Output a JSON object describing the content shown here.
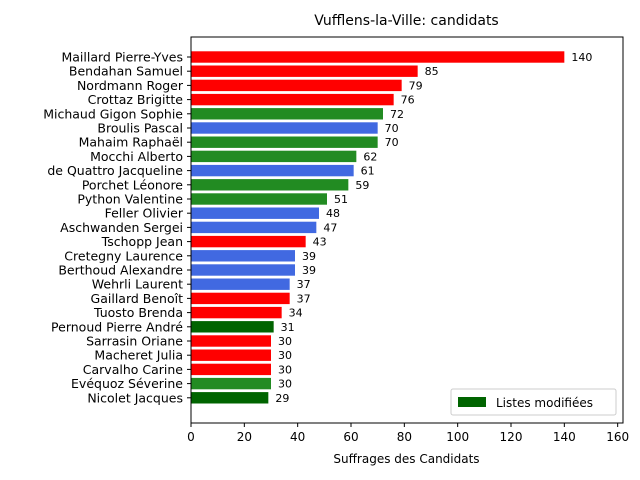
{
  "chart_data": {
    "type": "bar",
    "orientation": "horizontal",
    "title": "Vufflens-la-Ville: candidats",
    "xlabel": "Suffrages des Candidats",
    "ylabel": "",
    "xlim": [
      0,
      162
    ],
    "xticks": [
      0,
      20,
      40,
      60,
      80,
      100,
      120,
      140,
      160
    ],
    "grid": false,
    "legend": {
      "placement": "lower-right",
      "entries": [
        {
          "label": "Listes modifiées",
          "color": "#006400"
        }
      ]
    },
    "candidates": [
      {
        "name": "Maillard Pierre-Yves",
        "value": 140,
        "color": "#ff0000"
      },
      {
        "name": "Bendahan Samuel",
        "value": 85,
        "color": "#ff0000"
      },
      {
        "name": "Nordmann Roger",
        "value": 79,
        "color": "#ff0000"
      },
      {
        "name": "Crottaz Brigitte",
        "value": 76,
        "color": "#ff0000"
      },
      {
        "name": "Michaud Gigon Sophie",
        "value": 72,
        "color": "#228b22"
      },
      {
        "name": "Broulis Pascal",
        "value": 70,
        "color": "#4169e1"
      },
      {
        "name": "Mahaim Raphaël",
        "value": 70,
        "color": "#228b22"
      },
      {
        "name": "Mocchi Alberto",
        "value": 62,
        "color": "#228b22"
      },
      {
        "name": "de Quattro Jacqueline",
        "value": 61,
        "color": "#4169e1"
      },
      {
        "name": "Porchet Léonore",
        "value": 59,
        "color": "#228b22"
      },
      {
        "name": "Python Valentine",
        "value": 51,
        "color": "#228b22"
      },
      {
        "name": "Feller Olivier",
        "value": 48,
        "color": "#4169e1"
      },
      {
        "name": "Aschwanden Sergei",
        "value": 47,
        "color": "#4169e1"
      },
      {
        "name": "Tschopp Jean",
        "value": 43,
        "color": "#ff0000"
      },
      {
        "name": "Cretegny Laurence",
        "value": 39,
        "color": "#4169e1"
      },
      {
        "name": "Berthoud Alexandre",
        "value": 39,
        "color": "#4169e1"
      },
      {
        "name": "Wehrli Laurent",
        "value": 37,
        "color": "#4169e1"
      },
      {
        "name": "Gaillard Benoît",
        "value": 37,
        "color": "#ff0000"
      },
      {
        "name": "Tuosto Brenda",
        "value": 34,
        "color": "#ff0000"
      },
      {
        "name": "Pernoud Pierre André",
        "value": 31,
        "color": "#006400"
      },
      {
        "name": "Sarrasin Oriane",
        "value": 30,
        "color": "#ff0000"
      },
      {
        "name": "Macheret Julia",
        "value": 30,
        "color": "#ff0000"
      },
      {
        "name": "Carvalho Carine",
        "value": 30,
        "color": "#ff0000"
      },
      {
        "name": "Evéquoz Séverine",
        "value": 30,
        "color": "#228b22"
      },
      {
        "name": "Nicolet Jacques",
        "value": 29,
        "color": "#006400"
      }
    ]
  }
}
